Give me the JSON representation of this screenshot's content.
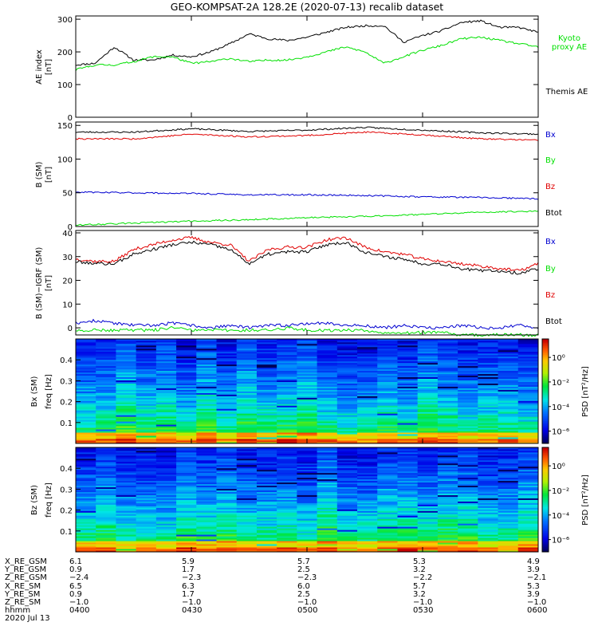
{
  "colors": {
    "black": "#000000",
    "red": "#e00000",
    "green": "#00e000",
    "blue": "#0000d0"
  },
  "title": "GEO-KOMPSAT-2A 128.2E (2020-07-13) recalib dataset",
  "panels": {
    "ae": {
      "ylabel": "AE index",
      "yunit": "[nT]",
      "ticks": [
        "300",
        "200",
        "100",
        "0"
      ],
      "legend": {
        "kyoto": [
          "Kyoto",
          "proxy AE"
        ],
        "themis": "Themis AE"
      }
    },
    "bsm": {
      "ylabel": "B (SM)",
      "yunit": "[nT]",
      "ticks": [
        "150",
        "100",
        "50",
        "0"
      ],
      "legend": [
        "Bx",
        "By",
        "Bz",
        "Btot"
      ]
    },
    "dbsm": {
      "ylabel": "B (SM)−IGRF (SM)",
      "yunit": "[nT]",
      "ticks": [
        "40",
        "30",
        "20",
        "10",
        "0"
      ],
      "legend": [
        "Bx",
        "By",
        "Bz",
        "Btot"
      ]
    },
    "bx_spec": {
      "ylabel": "Bx (SM)",
      "yunit": "freq [Hz]",
      "ticks": [
        "0.4",
        "0.3",
        "0.2",
        "0.1"
      ],
      "cbar_label": "PSD [nT²/Hz]",
      "cbar_ticks": [
        "10⁰",
        "10⁻²",
        "10⁻⁴",
        "10⁻⁶"
      ]
    },
    "bz_spec": {
      "ylabel": "Bz (SM)",
      "yunit": "freq [Hz]",
      "ticks": [
        "0.4",
        "0.3",
        "0.2",
        "0.1"
      ],
      "cbar_label": "PSD [nT²/Hz]",
      "cbar_ticks": [
        "10⁰",
        "10⁻²",
        "10⁻⁴",
        "10⁻⁶"
      ]
    }
  },
  "ephemeris": {
    "row_labels": [
      "X_RE_GSM",
      "Y_RE_GSM",
      "Z_RE_GSM",
      "X_RE_SM",
      "Y_RE_SM",
      "Z_RE_SM",
      "hhmm"
    ],
    "date": "2020 Jul 13",
    "columns": [
      [
        "6.1",
        "0.9",
        "−2.4",
        "6.5",
        "0.9",
        "−1.0",
        "0400"
      ],
      [
        "5.9",
        "1.7",
        "−2.3",
        "6.3",
        "1.7",
        "−1.0",
        "0430"
      ],
      [
        "5.7",
        "2.5",
        "−2.3",
        "6.0",
        "2.5",
        "−1.0",
        "0500"
      ],
      [
        "5.3",
        "3.2",
        "−2.2",
        "5.7",
        "3.2",
        "−1.0",
        "0530"
      ],
      [
        "4.9",
        "3.9",
        "−2.1",
        "5.3",
        "3.9",
        "−1.0",
        "0600"
      ]
    ]
  },
  "chart_data": [
    {
      "type": "line",
      "title": "AE index",
      "ylabel": "AE index [nT]",
      "ylim": [
        0,
        310
      ],
      "x_hours": [
        4.0,
        4.083,
        4.167,
        4.25,
        4.333,
        4.417,
        4.5,
        4.583,
        4.667,
        4.75,
        4.833,
        4.917,
        5.0,
        5.083,
        5.167,
        5.25,
        5.333,
        5.417,
        5.5,
        5.583,
        5.667,
        5.75,
        5.833,
        5.917,
        6.0
      ],
      "series": [
        {
          "name": "Themis AE",
          "color": "#000000",
          "values": [
            160,
            165,
            215,
            175,
            175,
            190,
            185,
            200,
            225,
            255,
            240,
            235,
            245,
            260,
            275,
            280,
            280,
            230,
            250,
            265,
            290,
            295,
            275,
            275,
            260
          ]
        },
        {
          "name": "Kyoto proxy AE",
          "color": "#00e000",
          "values": [
            145,
            160,
            160,
            170,
            185,
            185,
            165,
            170,
            180,
            170,
            175,
            175,
            185,
            200,
            215,
            200,
            165,
            185,
            205,
            220,
            240,
            245,
            235,
            225,
            215
          ]
        }
      ]
    },
    {
      "type": "line",
      "title": "B (SM)",
      "ylabel": "B (SM) [nT]",
      "ylim": [
        0,
        155
      ],
      "x_hours": [
        4.0,
        4.25,
        4.5,
        4.75,
        5.0,
        5.25,
        5.5,
        5.75,
        6.0
      ],
      "series": [
        {
          "name": "Btot",
          "color": "#000000",
          "values": [
            140,
            140,
            145,
            141,
            143,
            147,
            143,
            139,
            137
          ]
        },
        {
          "name": "Bz",
          "color": "#e00000",
          "values": [
            130,
            130,
            137,
            133,
            135,
            140,
            136,
            130,
            128
          ]
        },
        {
          "name": "Bx",
          "color": "#0000d0",
          "values": [
            51,
            50,
            49,
            47,
            47,
            46,
            44,
            43,
            41
          ]
        },
        {
          "name": "By",
          "color": "#00e000",
          "values": [
            2,
            5,
            8,
            10,
            13,
            15,
            18,
            21,
            23
          ]
        }
      ]
    },
    {
      "type": "line",
      "title": "B (SM)-IGRF (SM)",
      "ylabel": "B (SM)-IGRF (SM) [nT]",
      "ylim": [
        -3,
        41
      ],
      "x_hours": [
        4.0,
        4.083,
        4.167,
        4.25,
        4.333,
        4.417,
        4.5,
        4.583,
        4.667,
        4.75,
        4.833,
        4.917,
        5.0,
        5.083,
        5.167,
        5.25,
        5.333,
        5.417,
        5.5,
        5.583,
        5.667,
        5.75,
        5.833,
        5.917,
        6.0
      ],
      "series": [
        {
          "name": "Bz",
          "color": "#e00000",
          "values": [
            29,
            28,
            28,
            33,
            35,
            37,
            38,
            36,
            35,
            28,
            33,
            34,
            34,
            37,
            38,
            34,
            32,
            31,
            29,
            28,
            27,
            26,
            25,
            24,
            27
          ]
        },
        {
          "name": "Btot",
          "color": "#000000",
          "values": [
            28,
            27,
            27,
            31,
            33,
            35,
            36,
            35,
            33,
            27,
            31,
            32,
            32,
            35,
            36,
            32,
            30,
            29,
            27,
            27,
            25,
            24,
            24,
            23,
            25
          ]
        },
        {
          "name": "Bx",
          "color": "#0000d0",
          "values": [
            2,
            3,
            2,
            1,
            1,
            2,
            1,
            0,
            1,
            0,
            1,
            1,
            2,
            2,
            1,
            1,
            0,
            1,
            0,
            0,
            1,
            0,
            0,
            1,
            0
          ]
        },
        {
          "name": "By",
          "color": "#00e000",
          "values": [
            -1,
            -1,
            -1,
            -1,
            -1,
            0,
            -1,
            -1,
            -1,
            -1,
            -1,
            0,
            -1,
            -1,
            -1,
            -1,
            -2,
            -2,
            -2,
            -2,
            -3,
            -3,
            -3,
            -3,
            -3
          ]
        }
      ]
    },
    {
      "type": "heatmap",
      "title": "Bx (SM) spectrogram",
      "ylabel": "freq [Hz]",
      "ylim": [
        0,
        0.5
      ],
      "colorbar": "PSD [nT^2/Hz]",
      "clim_log10": [
        -7,
        1.5
      ],
      "description_level": "power highest at low frequency, decreasing with frequency"
    },
    {
      "type": "heatmap",
      "title": "Bz (SM) spectrogram",
      "ylabel": "freq [Hz]",
      "ylim": [
        0,
        0.5
      ],
      "colorbar": "PSD [nT^2/Hz]",
      "clim_log10": [
        -7,
        1.5
      ],
      "description_level": "power highest at low frequency, decreasing with frequency"
    }
  ]
}
